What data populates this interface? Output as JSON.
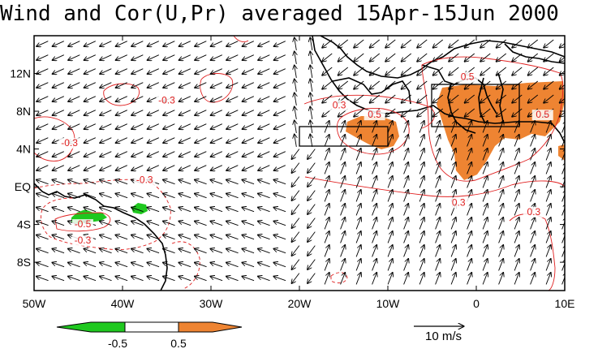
{
  "title": "Wind and Cor(U,Pr) averaged 15Apr-15Jun 2000",
  "map": {
    "lon_range": [
      -50,
      10
    ],
    "lat_range": [
      -11,
      16
    ],
    "lat_ticks": [
      {
        "label": "12N",
        "lat": 12
      },
      {
        "label": "8N",
        "lat": 8
      },
      {
        "label": "4N",
        "lat": 4
      },
      {
        "label": "EQ",
        "lat": 0
      },
      {
        "label": "4S",
        "lat": -4
      },
      {
        "label": "8S",
        "lat": -8
      }
    ],
    "lon_ticks": [
      {
        "label": "50W",
        "lon": -50
      },
      {
        "label": "40W",
        "lon": -40
      },
      {
        "label": "30W",
        "lon": -30
      },
      {
        "label": "20W",
        "lon": -20
      },
      {
        "label": "10W",
        "lon": -10
      },
      {
        "label": "0",
        "lon": 0
      },
      {
        "label": "10E",
        "lon": 10
      }
    ],
    "contour_labels": [
      {
        "text": "-0.3",
        "lon": -35,
        "lat": 8.8
      },
      {
        "text": "-0.3",
        "lon": -46,
        "lat": 4.3
      },
      {
        "text": "-0.3",
        "lon": -37.5,
        "lat": 0.4
      },
      {
        "text": "-0.5",
        "lon": -44.5,
        "lat": -4.3
      },
      {
        "text": "-0.3",
        "lon": -44.5,
        "lat": -6.0
      },
      {
        "text": "0.3",
        "lon": -15.5,
        "lat": 8.3
      },
      {
        "text": "0.5",
        "lon": -11.5,
        "lat": 7.3
      },
      {
        "text": "0.5",
        "lon": -1.0,
        "lat": 11.3
      },
      {
        "text": "0.5",
        "lon": 7.5,
        "lat": 7.3
      },
      {
        "text": "0.3",
        "lon": -2.0,
        "lat": -2.0
      },
      {
        "text": "0.3",
        "lon": 6.5,
        "lat": -3.0
      }
    ],
    "boxes": [
      {
        "name": "box-guinea-coast",
        "lon": [
          -20,
          -10
        ],
        "lat": [
          4,
          6
        ]
      },
      {
        "name": "box-west-africa",
        "lon": [
          -5,
          5
        ],
        "lat": [
          6,
          10
        ]
      }
    ]
  },
  "colorbar": {
    "labels": [
      "-0.5",
      "0.5"
    ],
    "colors": {
      "negative": "#1fc81f",
      "neutral": "#ffffff",
      "positive": "#ee8432"
    }
  },
  "reference_vector": {
    "label": "10 m/s"
  },
  "colors": {
    "contour": "#e02020",
    "positive_fill": "#ee8432",
    "negative_fill": "#1fc81f"
  }
}
